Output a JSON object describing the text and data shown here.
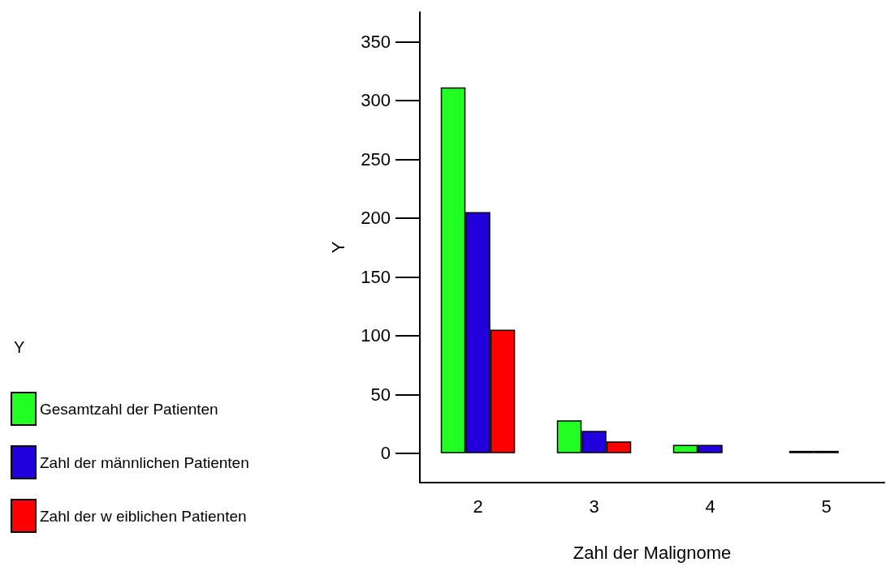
{
  "chart_data": {
    "type": "bar",
    "xlabel": "Zahl der Malignome",
    "ylabel": "Y",
    "legend_title": "Y",
    "categories": [
      "2",
      "3",
      "4",
      "5"
    ],
    "series": [
      {
        "name": "Gesamtzahl der Patienten",
        "color": "#22ff22",
        "values": [
          311,
          28,
          7,
          2
        ]
      },
      {
        "name": "Zahl der männlichen Patienten",
        "color": "#2200dd",
        "values": [
          205,
          19,
          7,
          2
        ]
      },
      {
        "name": "Zahl der w eiblichen Patienten",
        "color": "#ff0000",
        "values": [
          105,
          10,
          null,
          null
        ]
      }
    ],
    "ylim": [
      -25,
      375
    ],
    "yticks": [
      0,
      50,
      100,
      150,
      200,
      250,
      300,
      350
    ],
    "grid": false,
    "legend": "left"
  }
}
